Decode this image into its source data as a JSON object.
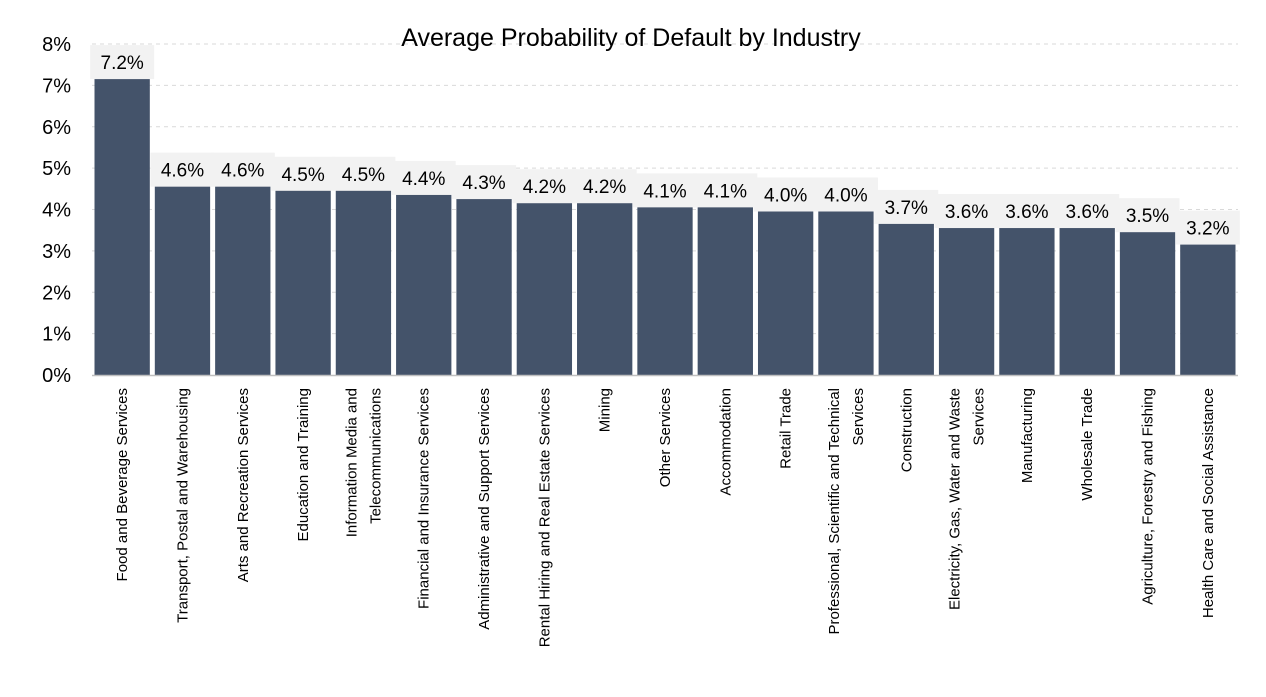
{
  "chart_data": {
    "type": "bar",
    "title": "Average Probability of Default by Industry",
    "xlabel": "",
    "ylabel": "",
    "ylim": [
      0,
      8
    ],
    "yticks": [
      0,
      1,
      2,
      3,
      4,
      5,
      6,
      7,
      8
    ],
    "ytick_labels": [
      "0%",
      "1%",
      "2%",
      "3%",
      "4%",
      "5%",
      "6%",
      "7%",
      "8%"
    ],
    "grid": true,
    "legend": "none",
    "bar_color": "#44536a",
    "label_bg": "#f2f2f2",
    "categories": [
      "Food and Beverage Services",
      "Transport, Postal and Warehousing",
      "Arts and Recreation Services",
      "Education and Training",
      "Information Media and Telecommunications",
      "Financial and Insurance Services",
      "Administrative and Support Services",
      "Rental Hiring and Real Estate Services",
      "Mining",
      "Other Services",
      "Accommodation",
      "Retail Trade",
      "Professional, Scientific and Technical Services",
      "Construction",
      "Electricity, Gas, Water and Waste Services",
      "Manufacturing",
      "Wholesale Trade",
      "Agriculture, Forestry and Fishing",
      "Health Care and Social Assistance"
    ],
    "category_lines": [
      [
        "Food and Beverage Services"
      ],
      [
        "Transport, Postal and Warehousing"
      ],
      [
        "Arts and Recreation Services"
      ],
      [
        "Education and Training"
      ],
      [
        "Information Media and",
        "Telecommunications"
      ],
      [
        "Financial and Insurance Services"
      ],
      [
        "Administrative and Support Services"
      ],
      [
        "Rental Hiring and Real Estate Services"
      ],
      [
        "Mining"
      ],
      [
        "Other Services"
      ],
      [
        "Accommodation"
      ],
      [
        "Retail Trade"
      ],
      [
        "Professional, Scientific and Technical",
        "Services"
      ],
      [
        "Construction"
      ],
      [
        "Electricity, Gas, Water and Waste",
        "Services"
      ],
      [
        "Manufacturing"
      ],
      [
        "Wholesale Trade"
      ],
      [
        "Agriculture, Forestry and Fishing"
      ],
      [
        "Health Care and Social Assistance"
      ]
    ],
    "values": [
      7.2,
      4.6,
      4.6,
      4.5,
      4.5,
      4.4,
      4.3,
      4.2,
      4.2,
      4.1,
      4.1,
      4.0,
      4.0,
      3.7,
      3.6,
      3.6,
      3.6,
      3.5,
      3.2
    ],
    "data_labels": [
      "7.2%",
      "4.6%",
      "4.6%",
      "4.5%",
      "4.5%",
      "4.4%",
      "4.3%",
      "4.2%",
      "4.2%",
      "4.1%",
      "4.1%",
      "4.0%",
      "4.0%",
      "3.7%",
      "3.6%",
      "3.6%",
      "3.6%",
      "3.5%",
      "3.2%"
    ]
  }
}
